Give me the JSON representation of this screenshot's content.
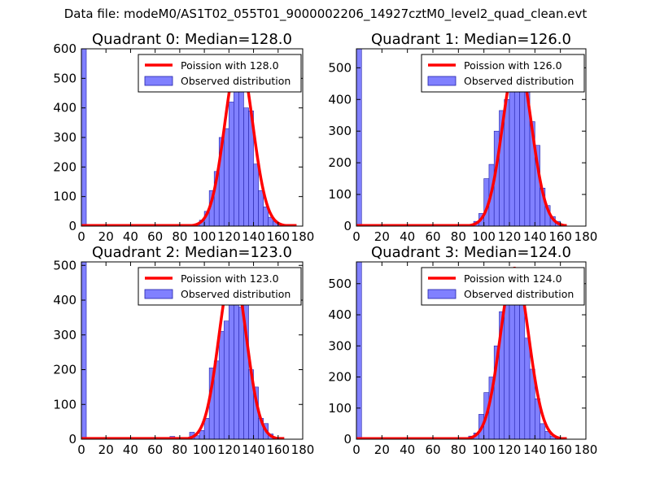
{
  "figure_title": "Data file: modeM0/AS1T02_055T01_9000002206_14927cztM0_level2_quad_clean.evt",
  "colors": {
    "bar_fill": "#8080ff",
    "bar_edge": "#2222aa",
    "curve": "#ff0000",
    "axes": "#000000"
  },
  "chart_data": [
    {
      "type": "bar",
      "title": "Quadrant 0: Median=128.0",
      "xlim": [
        0,
        180
      ],
      "ylim": [
        0,
        600
      ],
      "xticks": [
        "0",
        "20",
        "40",
        "60",
        "80",
        "100",
        "120",
        "140",
        "160",
        "180"
      ],
      "yticks": [
        "0",
        "100",
        "200",
        "300",
        "400",
        "500",
        "600"
      ],
      "legend": {
        "position": "top-right",
        "curve_label": "Poission with 128.0",
        "bar_label": "Observed distribution"
      },
      "bar_width": 4,
      "bars": [
        {
          "x": 0,
          "h": 600
        },
        {
          "x": 92,
          "h": 5
        },
        {
          "x": 96,
          "h": 20
        },
        {
          "x": 100,
          "h": 50
        },
        {
          "x": 104,
          "h": 120
        },
        {
          "x": 108,
          "h": 185
        },
        {
          "x": 112,
          "h": 300
        },
        {
          "x": 116,
          "h": 330
        },
        {
          "x": 120,
          "h": 420
        },
        {
          "x": 124,
          "h": 490
        },
        {
          "x": 128,
          "h": 575
        },
        {
          "x": 132,
          "h": 400
        },
        {
          "x": 136,
          "h": 390
        },
        {
          "x": 140,
          "h": 210
        },
        {
          "x": 144,
          "h": 120
        },
        {
          "x": 148,
          "h": 65
        },
        {
          "x": 152,
          "h": 30
        },
        {
          "x": 156,
          "h": 15
        },
        {
          "x": 160,
          "h": 5
        }
      ],
      "curve": {
        "mu": 128.0,
        "sigma": 11.3,
        "peak": 575,
        "xmin": 0,
        "xmax": 175
      }
    },
    {
      "type": "bar",
      "title": "Quadrant 1: Median=126.0",
      "xlim": [
        0,
        180
      ],
      "ylim": [
        0,
        560
      ],
      "xticks": [
        "0",
        "20",
        "40",
        "60",
        "80",
        "100",
        "120",
        "140",
        "160",
        "180"
      ],
      "yticks": [
        "0",
        "100",
        "200",
        "300",
        "400",
        "500"
      ],
      "legend": {
        "position": "top-right",
        "curve_label": "Poission with 126.0",
        "bar_label": "Observed distribution"
      },
      "bar_width": 4,
      "bars": [
        {
          "x": 0,
          "h": 560
        },
        {
          "x": 70,
          "h": 5
        },
        {
          "x": 74,
          "h": 5
        },
        {
          "x": 84,
          "h": 5
        },
        {
          "x": 92,
          "h": 15
        },
        {
          "x": 96,
          "h": 40
        },
        {
          "x": 100,
          "h": 150
        },
        {
          "x": 104,
          "h": 195
        },
        {
          "x": 108,
          "h": 300
        },
        {
          "x": 112,
          "h": 365
        },
        {
          "x": 116,
          "h": 400
        },
        {
          "x": 120,
          "h": 450
        },
        {
          "x": 124,
          "h": 510
        },
        {
          "x": 128,
          "h": 425
        },
        {
          "x": 132,
          "h": 480
        },
        {
          "x": 136,
          "h": 330
        },
        {
          "x": 140,
          "h": 255
        },
        {
          "x": 144,
          "h": 120
        },
        {
          "x": 148,
          "h": 65
        },
        {
          "x": 152,
          "h": 30
        },
        {
          "x": 156,
          "h": 15
        },
        {
          "x": 160,
          "h": 5
        }
      ],
      "curve": {
        "mu": 126.0,
        "sigma": 11.2,
        "peak": 535,
        "xmin": 0,
        "xmax": 165
      }
    },
    {
      "type": "bar",
      "title": "Quadrant 2: Median=123.0",
      "xlim": [
        0,
        180
      ],
      "ylim": [
        0,
        510
      ],
      "xticks": [
        "0",
        "20",
        "40",
        "60",
        "80",
        "100",
        "120",
        "140",
        "160",
        "180"
      ],
      "yticks": [
        "0",
        "100",
        "200",
        "300",
        "400",
        "500"
      ],
      "legend": {
        "position": "top-right",
        "curve_label": "Poission with 123.0",
        "bar_label": "Observed distribution"
      },
      "bar_width": 4,
      "bars": [
        {
          "x": 0,
          "h": 510
        },
        {
          "x": 72,
          "h": 8
        },
        {
          "x": 84,
          "h": 5
        },
        {
          "x": 88,
          "h": 20
        },
        {
          "x": 92,
          "h": 10
        },
        {
          "x": 96,
          "h": 25
        },
        {
          "x": 100,
          "h": 60
        },
        {
          "x": 104,
          "h": 205
        },
        {
          "x": 108,
          "h": 225
        },
        {
          "x": 112,
          "h": 310
        },
        {
          "x": 116,
          "h": 340
        },
        {
          "x": 120,
          "h": 420
        },
        {
          "x": 124,
          "h": 485
        },
        {
          "x": 128,
          "h": 380
        },
        {
          "x": 132,
          "h": 395
        },
        {
          "x": 136,
          "h": 200
        },
        {
          "x": 140,
          "h": 150
        },
        {
          "x": 144,
          "h": 60
        },
        {
          "x": 148,
          "h": 45
        },
        {
          "x": 152,
          "h": 15
        },
        {
          "x": 156,
          "h": 5
        }
      ],
      "curve": {
        "mu": 123.0,
        "sigma": 11.1,
        "peak": 490,
        "xmin": 0,
        "xmax": 165
      }
    },
    {
      "type": "bar",
      "title": "Quadrant 3: Median=124.0",
      "xlim": [
        0,
        180
      ],
      "ylim": [
        0,
        570
      ],
      "xticks": [
        "0",
        "20",
        "40",
        "60",
        "80",
        "100",
        "120",
        "140",
        "160",
        "180"
      ],
      "yticks": [
        "0",
        "100",
        "200",
        "300",
        "400",
        "500"
      ],
      "legend": {
        "position": "top-right",
        "curve_label": "Poission with 124.0",
        "bar_label": "Observed distribution"
      },
      "bar_width": 4,
      "bars": [
        {
          "x": 0,
          "h": 570
        },
        {
          "x": 68,
          "h": 5
        },
        {
          "x": 76,
          "h": 5
        },
        {
          "x": 88,
          "h": 10
        },
        {
          "x": 92,
          "h": 20
        },
        {
          "x": 96,
          "h": 80
        },
        {
          "x": 100,
          "h": 150
        },
        {
          "x": 104,
          "h": 200
        },
        {
          "x": 108,
          "h": 300
        },
        {
          "x": 112,
          "h": 410
        },
        {
          "x": 116,
          "h": 520
        },
        {
          "x": 120,
          "h": 540
        },
        {
          "x": 124,
          "h": 530
        },
        {
          "x": 128,
          "h": 480
        },
        {
          "x": 132,
          "h": 325
        },
        {
          "x": 136,
          "h": 225
        },
        {
          "x": 140,
          "h": 130
        },
        {
          "x": 144,
          "h": 50
        },
        {
          "x": 148,
          "h": 25
        },
        {
          "x": 152,
          "h": 10
        },
        {
          "x": 156,
          "h": 5
        }
      ],
      "curve": {
        "mu": 124.0,
        "sigma": 11.1,
        "peak": 550,
        "xmin": 0,
        "xmax": 165
      }
    }
  ]
}
